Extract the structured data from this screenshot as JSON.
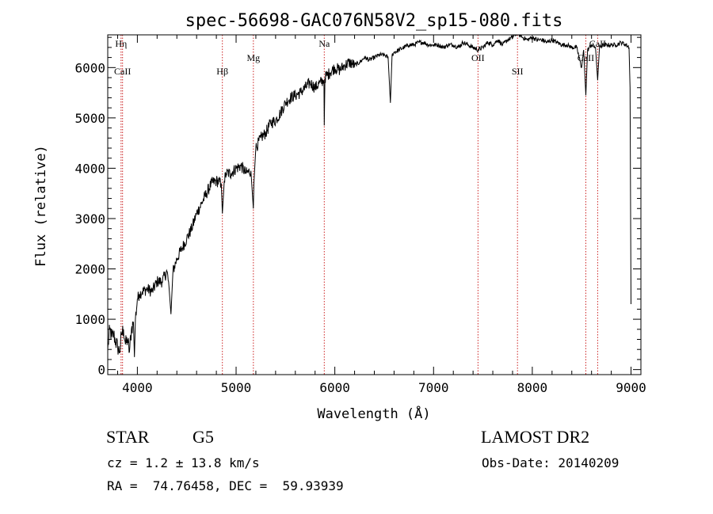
{
  "chart_data": {
    "type": "line",
    "title": "spec-56698-GAC076N58V2_sp15-080.fits",
    "xlabel": "Wavelength (Å)",
    "ylabel": "Flux (relative)",
    "xlim": [
      3700,
      9100
    ],
    "ylim": [
      -100,
      6650
    ],
    "x_ticks": [
      4000,
      5000,
      6000,
      7000,
      8000,
      9000
    ],
    "y_ticks": [
      0,
      1000,
      2000,
      3000,
      4000,
      5000,
      6000
    ],
    "x_tick_labels": [
      "4000",
      "5000",
      "6000",
      "7000",
      "8000",
      "9000"
    ],
    "y_tick_labels": [
      "0",
      "1000",
      "2000",
      "3000",
      "4000",
      "5000",
      "6000"
    ],
    "line_color": "#000000",
    "marker_color": "#cc2222",
    "spectrum": {
      "x": [
        3700,
        3720,
        3740,
        3760,
        3780,
        3800,
        3820,
        3840,
        3860,
        3880,
        3900,
        3920,
        3940,
        3960,
        3970,
        3980,
        4000,
        4020,
        4050,
        4100,
        4150,
        4200,
        4250,
        4300,
        4320,
        4340,
        4360,
        4400,
        4450,
        4500,
        4550,
        4600,
        4650,
        4700,
        4750,
        4800,
        4850,
        4861,
        4880,
        4900,
        4950,
        5000,
        5050,
        5100,
        5150,
        5175,
        5180,
        5200,
        5250,
        5300,
        5350,
        5400,
        5450,
        5500,
        5550,
        5600,
        5650,
        5700,
        5750,
        5800,
        5850,
        5890,
        5893,
        5900,
        5950,
        6000,
        6050,
        6100,
        6150,
        6200,
        6250,
        6300,
        6350,
        6400,
        6450,
        6500,
        6540,
        6563,
        6580,
        6600,
        6650,
        6700,
        6750,
        6800,
        6850,
        6900,
        6950,
        7000,
        7050,
        7100,
        7150,
        7200,
        7250,
        7300,
        7350,
        7400,
        7450,
        7500,
        7550,
        7600,
        7650,
        7700,
        7750,
        7800,
        7850,
        7900,
        7950,
        8000,
        8050,
        8100,
        8150,
        8200,
        8250,
        8300,
        8350,
        8400,
        8450,
        8498,
        8520,
        8542,
        8560,
        8600,
        8640,
        8662,
        8680,
        8720,
        8760,
        8800,
        8850,
        8900,
        8950,
        8980,
        8990,
        9000
      ],
      "y": [
        400,
        800,
        650,
        700,
        550,
        450,
        350,
        700,
        800,
        500,
        600,
        350,
        800,
        950,
        250,
        1000,
        1400,
        1500,
        1550,
        1600,
        1550,
        1750,
        1750,
        1950,
        1650,
        1100,
        1950,
        2200,
        2400,
        2600,
        2800,
        3100,
        3300,
        3500,
        3700,
        3750,
        3700,
        3100,
        3750,
        3900,
        3900,
        4000,
        4050,
        3900,
        3950,
        3200,
        3700,
        4400,
        4600,
        4700,
        4900,
        4950,
        5100,
        5300,
        5400,
        5450,
        5500,
        5600,
        5700,
        5600,
        5700,
        5750,
        4850,
        5800,
        5900,
        6000,
        5950,
        6050,
        6100,
        6050,
        6100,
        6200,
        6150,
        6200,
        6250,
        6250,
        6200,
        5300,
        6250,
        6300,
        6350,
        6400,
        6450,
        6450,
        6500,
        6500,
        6450,
        6450,
        6450,
        6400,
        6450,
        6450,
        6400,
        6500,
        6450,
        6400,
        6350,
        6400,
        6500,
        6450,
        6550,
        6450,
        6550,
        6600,
        6700,
        6600,
        6550,
        6600,
        6550,
        6550,
        6500,
        6550,
        6500,
        6450,
        6450,
        6400,
        6400,
        6000,
        6350,
        5450,
        6350,
        6450,
        6400,
        5750,
        6400,
        6450,
        6450,
        6450,
        6450,
        6500,
        6450,
        6400,
        5600,
        1300
      ]
    },
    "line_markers": [
      {
        "label": "Hη",
        "x": 3835,
        "label_row": "top"
      },
      {
        "label": "CaII",
        "x": 3850,
        "label_row": "low"
      },
      {
        "label": "Hβ",
        "x": 4861,
        "label_row": "low"
      },
      {
        "label": "Mg",
        "x": 5175,
        "label_row": "mid"
      },
      {
        "label": "Na",
        "x": 5893,
        "label_row": "top"
      },
      {
        "label": "OII",
        "x": 7450,
        "label_row": "mid"
      },
      {
        "label": "SII",
        "x": 7850,
        "label_row": "low"
      },
      {
        "label": "CaII",
        "x": 8542,
        "label_row": "mid"
      },
      {
        "label": "CaII",
        "x": 8662,
        "label_row": "top"
      }
    ]
  },
  "info": {
    "object_class": "STAR",
    "subclass": "G5",
    "survey": "LAMOST DR2",
    "redshift": "cz = 1.2 ± 13.8 km/s",
    "obs_date": "Obs-Date: 20140209",
    "coords": "RA =  74.76458, DEC =  59.93939"
  }
}
